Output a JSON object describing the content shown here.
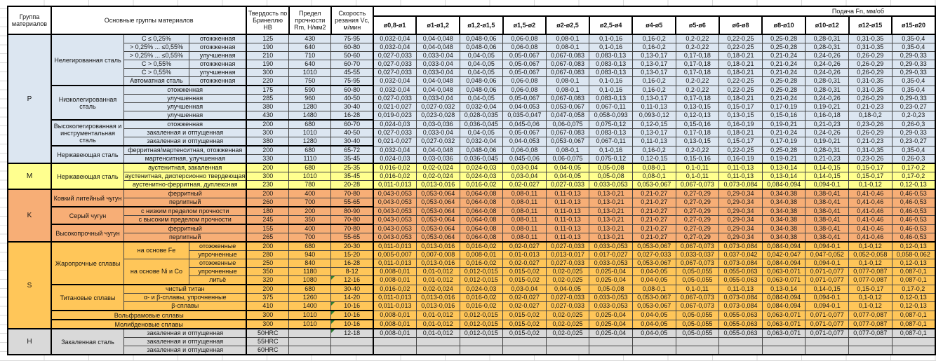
{
  "header": {
    "col_group": "Группа материалов",
    "col_main": "Основные группы материалов",
    "col_hb": "Твердость по Бринеллю HB",
    "col_rm": "Предел прочности Rm, Н/мм2",
    "col_vc": "Скорость резания Vc, м/мин",
    "feed_title": "Подача Fn, мм/об",
    "diameters": [
      "ø0,8-ø1",
      "ø1-ø1,2",
      "ø1,2-ø1,5",
      "ø1,5-ø2",
      "ø2-ø2,5",
      "ø2,5-ø4",
      "ø4-ø5",
      "ø5-ø6",
      "ø6-ø8",
      "ø8-ø10",
      "ø10-ø12",
      "ø12-ø15",
      "ø15-ø20"
    ]
  },
  "colors": {
    "group_P": "#DCE6F1",
    "group_M": "#FFFF8F",
    "group_K": "#F7AE76",
    "group_S": "#FFC659",
    "group_H": "#D9D9D9",
    "note_marker": "#2e7d32",
    "grid": "#d9d9d9"
  },
  "fn_patterns": {
    "A": [
      "0,032-0,04",
      "0,04-0,048",
      "0,048-0,06",
      "0,06-0,08",
      "0,08-0,1",
      "0,1-0,16",
      "0,16-0,2",
      "0,2-0,22",
      "0,22-0,25",
      "0,25-0,28",
      "0,28-0,31",
      "0,31-0,35",
      "0,35-0,4"
    ],
    "B": [
      "0,027-0,033",
      "0,033-0,04",
      "0,04-0,05",
      "0,05-0,067",
      "0,067-0,083",
      "0,083-0,13",
      "0,13-0,17",
      "0,17-0,18",
      "0,18-0,21",
      "0,21-0,24",
      "0,24-0,26",
      "0,26-0,29",
      "0,29-0,33"
    ],
    "C": [
      "0,021-0,027",
      "0,027-0,032",
      "0,032-0,04",
      "0,04-0,053",
      "0,053-0,067",
      "0,067-0,11",
      "0,11-0,13",
      "0,13-0,15",
      "0,15-0,17",
      "0,17-0,19",
      "0,19-0,21",
      "0,21-0,23",
      "0,23-0,27"
    ],
    "D": [
      "0,019-0,023",
      "0,023-0,028",
      "0,028-0,035",
      "0,035-0,047",
      "0,047-0,058",
      "0,058-0,093",
      "0,093-0,12",
      "0,12-0,13",
      "0,13-0,15",
      "0,15-0,16",
      "0,16-0,18",
      "0,18-0,2",
      "0,2-0,23"
    ],
    "E": [
      "0,024-0,03",
      "0,03-0,036",
      "0,036-0,045",
      "0,045-0,06",
      "0,06-0,075",
      "0,075-0,12",
      "0,12-0,15",
      "0,15-0,16",
      "0,16-0,19",
      "0,19-0,21",
      "0,21-0,23",
      "0,23-0,26",
      "0,26-0,3"
    ],
    "F": [
      "0,016-0,02",
      "0,02-0,024",
      "0,024-0,03",
      "0,03-0,04",
      "0,04-0,05",
      "0,05-0,08",
      "0,08-0,1",
      "0,1-0,11",
      "0,11-0,13",
      "0,13-0,14",
      "0,14-0,15",
      "0,15-0,17",
      "0,17-0,2"
    ],
    "G": [
      "0,011-0,013",
      "0,013-0,016",
      "0,016-0,02",
      "0,02-0,027",
      "0,027-0,033",
      "0,033-0,053",
      "0,053-0,067",
      "0,067-0,073",
      "0,073-0,084",
      "0,084-0,094",
      "0,094-0,1",
      "0,1-0,12",
      "0,12-0,13"
    ],
    "K": [
      "0,043-0,053",
      "0,053-0,064",
      "0,064-0,08",
      "0,08-0,11",
      "0,11-0,13",
      "0,13-0,21",
      "0,21-0,27",
      "0,27-0,29",
      "0,29-0,34",
      "0,34-0,38",
      "0,38-0,41",
      "0,41-0,46",
      "0,46-0,53"
    ],
    "I": [
      "0,005-0,007",
      "0,007-0,008",
      "0,008-0,01",
      "0,01-0,013",
      "0,013-0,017",
      "0,017-0,027",
      "0,027-0,033",
      "0,033-0,037",
      "0,037-0,042",
      "0,042-0,047",
      "0,047-0,052",
      "0,052-0,058",
      "0,058-0,062"
    ],
    "J": [
      "0,008-0,01",
      "0,01-0,012",
      "0,012-0,015",
      "0,015-0,02",
      "0,02-0,025",
      "0,025-0,04",
      "0,04-0,05",
      "0,05-0,055",
      "0,055-0,063",
      "0,063-0,071",
      "0,071-0,077",
      "0,077-0,087",
      "0,087-0,1"
    ]
  },
  "groups": [
    {
      "code": "P",
      "color": "#DCE6F1",
      "families": [
        {
          "name": "Нелегированная сталь",
          "rows": [
            {
              "s1": "C ≤ 0,25%",
              "s2": "отожженная",
              "hb": "125",
              "rm": "430",
              "vc": "75-95",
              "fn": "A"
            },
            {
              "s1": "> 0,25% ... ≤0,55%",
              "s2": "отожженная",
              "hb": "190",
              "rm": "640",
              "vc": "60-80",
              "fn": "A"
            },
            {
              "s1": "> 0,25% ... ≤0,55%",
              "s2": "улучшенная",
              "hb": "210",
              "rm": "710",
              "vc": "50-60",
              "fn": "B"
            },
            {
              "s1": "C > 0,55%",
              "s2": "отожженная",
              "hb": "190",
              "rm": "640",
              "vc": "60-70",
              "fn": "B"
            },
            {
              "s1": "C > 0,55%",
              "s2": "улучшенная",
              "hb": "300",
              "rm": "1010",
              "vc": "45-55",
              "fn": "B"
            },
            {
              "s1": "Автоматная сталь",
              "s2": "отожженная",
              "hb": "220",
              "rm": "750",
              "vc": "75-95",
              "fn": "A"
            }
          ]
        },
        {
          "name": "Низколегированная сталь",
          "rows": [
            {
              "s": "отожженная",
              "hb": "175",
              "rm": "590",
              "vc": "60-80",
              "fn": "A"
            },
            {
              "s": "улучшенная",
              "hb": "285",
              "rm": "960",
              "vc": "40-50",
              "fn": "B"
            },
            {
              "s": "улучшенная",
              "hb": "380",
              "rm": "1280",
              "vc": "30-40",
              "fn": "C"
            },
            {
              "s": "улучшенная",
              "hb": "430",
              "rm": "1480",
              "vc": "16-28",
              "fn": "D"
            }
          ]
        },
        {
          "name": "Высоколегированная и инструментальная сталь",
          "rows": [
            {
              "s": "отожженная",
              "hb": "200",
              "rm": "680",
              "vc": "60-70",
              "fn": "E"
            },
            {
              "s": "закаленная и отпущенная",
              "hb": "300",
              "rm": "1010",
              "vc": "40-50",
              "fn": "B"
            },
            {
              "s": "закаленная и отпущенная",
              "hb": "380",
              "rm": "1280",
              "vc": "30-40",
              "fn": "C"
            }
          ]
        },
        {
          "name": "Нержавеющая сталь",
          "rows": [
            {
              "s": "ферритная/мартенситная, отожженная",
              "hb": "200",
              "rm": "680",
              "vc": "65-72",
              "fn": "A"
            },
            {
              "s": "мартенситная, улучшенная",
              "hb": "330",
              "rm": "1110",
              "vc": "35-45",
              "fn": "E"
            }
          ]
        }
      ]
    },
    {
      "code": "M",
      "color": "#FFFF8F",
      "families": [
        {
          "name": "Нержавеющая сталь",
          "rows": [
            {
              "s": "аустенитная, закаленная",
              "hb": "200",
              "rm": "680",
              "vc": "25-35",
              "fn": "F"
            },
            {
              "s": "аустенитная, дисперсионно твердеющая",
              "hb": "300",
              "rm": "1010",
              "vc": "35-45",
              "fn": "F"
            },
            {
              "s": "аустенитно-ферритная, дуплексная",
              "hb": "230",
              "rm": "780",
              "vc": "20-28",
              "fn": "G"
            }
          ]
        }
      ]
    },
    {
      "code": "K",
      "color": "#F7AE76",
      "families": [
        {
          "name": "Ковкий литейный чугун",
          "rows": [
            {
              "s": "ферритный",
              "hb": "200",
              "rm": "400",
              "vc": "70-80",
              "fn": "K"
            },
            {
              "s": "перлитный",
              "hb": "260",
              "rm": "700",
              "vc": "55-65",
              "fn": "K"
            }
          ]
        },
        {
          "name": "Серый чугун",
          "rows": [
            {
              "s": "с низким пределом прочности",
              "hb": "180",
              "rm": "200",
              "vc": "80-90",
              "fn": "K"
            },
            {
              "s": "с высоким пределом прочности",
              "hb": "245",
              "rm": "350",
              "vc": "70-80",
              "fn": "K"
            }
          ]
        },
        {
          "name": "Высокопрочный чугун",
          "rows": [
            {
              "s": "ферритный",
              "hb": "155",
              "rm": "400",
              "vc": "70-80",
              "fn": "K"
            },
            {
              "s": "перлитный",
              "hb": "265",
              "rm": "700",
              "vc": "55-65",
              "fn": "K"
            }
          ]
        }
      ]
    },
    {
      "code": "S",
      "color": "#FFC659",
      "families": [
        {
          "name": "Жаропрочные сплавы",
          "nested": [
            {
              "name": "на основе Fe",
              "rows": [
                {
                  "s2": "отожженные",
                  "hb": "200",
                  "rm": "680",
                  "vc": "20-30",
                  "fn": "G"
                },
                {
                  "s2": "упрочненные",
                  "hb": "280",
                  "rm": "940",
                  "vc": "15-20",
                  "fn": "I"
                }
              ]
            },
            {
              "name": "на основе Ni и Co",
              "rows": [
                {
                  "s2": "отожженные",
                  "hb": "250",
                  "rm": "840",
                  "vc": "16-28",
                  "fn": "G"
                },
                {
                  "s2": "упрочненные",
                  "hb": "350",
                  "rm": "1180",
                  "vc": "8-12",
                  "fn": "J"
                },
                {
                  "s2": "литьё",
                  "hb": "320",
                  "rm": "1080",
                  "vc": "12-16",
                  "fn": "J",
                  "note": true
                }
              ]
            }
          ]
        },
        {
          "name": "Титановые сплавы",
          "rows": [
            {
              "s": "чистый титан",
              "hb": "200",
              "rm": "680",
              "vc": "30-40",
              "fn": "F"
            },
            {
              "s": "α- и β-сплавы, упрочненные",
              "hb": "375",
              "rm": "1260",
              "vc": "14-20",
              "fn": "G"
            },
            {
              "s": "β-сплавы",
              "hb": "410",
              "rm": "1400",
              "vc": "10-16",
              "fn": "G",
              "note": true
            }
          ]
        },
        {
          "name": "Вольфрамовые сплавы",
          "wide": true,
          "rows": [
            {
              "hb": "300",
              "rm": "1010",
              "vc": "10-16",
              "fn": "J",
              "note": true
            }
          ]
        },
        {
          "name": "Молибденовые сплавы",
          "wide": true,
          "rows": [
            {
              "hb": "300",
              "rm": "1010",
              "vc": "10-16",
              "fn": "J",
              "note": true
            }
          ]
        }
      ]
    },
    {
      "code": "H",
      "color": "#D9D9D9",
      "families": [
        {
          "name": "Закаленная сталь",
          "rows": [
            {
              "s": "закаленная и отпущенная",
              "hb": "50HRC",
              "rm": "",
              "vc": "12-18",
              "fn": "J",
              "note": true
            },
            {
              "s": "закаленная и отпущенная",
              "hb": "55HRC",
              "rm": "",
              "vc": "",
              "fn": ""
            },
            {
              "s": "закаленная и отпущенная",
              "hb": "60HRC",
              "rm": "",
              "vc": "",
              "fn": ""
            }
          ]
        }
      ]
    }
  ]
}
